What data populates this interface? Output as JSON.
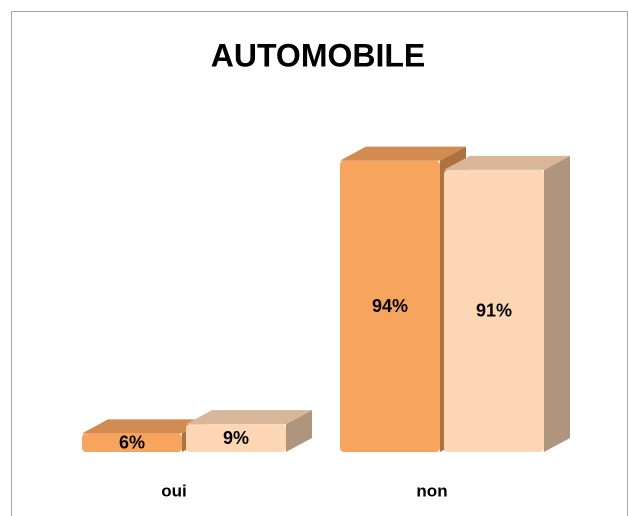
{
  "chart_data": {
    "type": "bar3d",
    "title": "AUTOMOBILE",
    "categories": [
      "oui",
      "non"
    ],
    "series": [
      {
        "color": "#f7a45f",
        "values": [
          6,
          94
        ],
        "value_labels": [
          "6%",
          "94%"
        ]
      },
      {
        "color": "#fdd6b5",
        "values": [
          9,
          91
        ],
        "value_labels": [
          "9%",
          "91%"
        ]
      }
    ]
  }
}
